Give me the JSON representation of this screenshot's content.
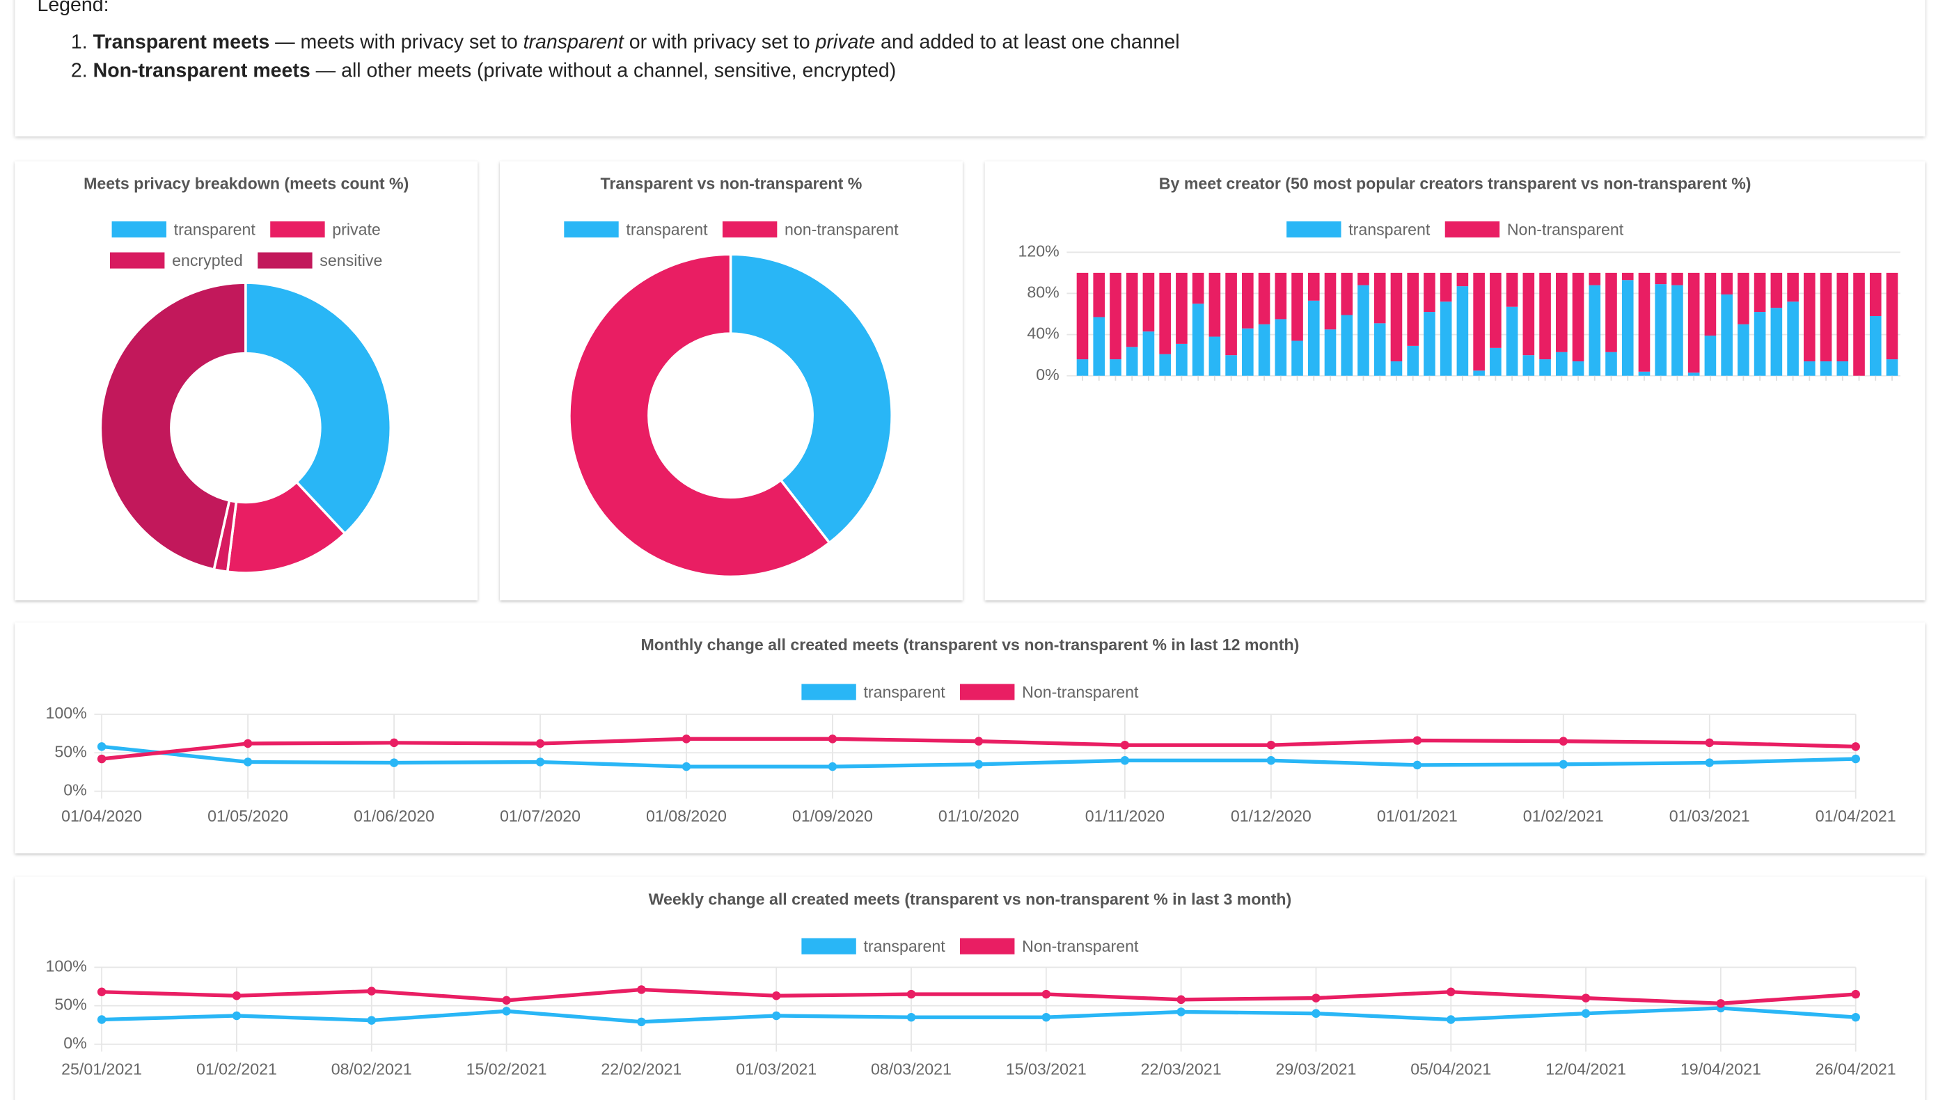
{
  "legend": {
    "title": "Legend:",
    "items": [
      {
        "term": "Transparent meets",
        "parts": [
          "— meets with privacy set to ",
          "transparent",
          " or with privacy set to ",
          "private",
          " and added to at least one channel"
        ]
      },
      {
        "term": "Non-transparent meets",
        "parts": [
          "— all other meets (private without a channel, sensitive, encrypted)"
        ]
      }
    ]
  },
  "chart_data": [
    {
      "type": "pie",
      "title": "Meets privacy breakdown (meets count %)",
      "categories": [
        "transparent",
        "private",
        "encrypted",
        "sensitive"
      ],
      "values": [
        38,
        14,
        1.5,
        46.5
      ],
      "colors": [
        "#29b6f6",
        "#e91e63",
        "#d81b60",
        "#c2185b"
      ],
      "donut": true
    },
    {
      "type": "pie",
      "title": "Transparent vs non-transparent %",
      "categories": [
        "transparent",
        "non-transparent"
      ],
      "values": [
        39.5,
        60.5
      ],
      "colors": [
        "#29b6f6",
        "#e91e63"
      ],
      "donut": true
    },
    {
      "type": "bar",
      "stacked": true,
      "title": "By meet creator (50 most popular creators transparent vs non-transparent %)",
      "categories": [
        null,
        null,
        null,
        null,
        null,
        null,
        null,
        null,
        null,
        null,
        null,
        null,
        null,
        null,
        null,
        null,
        null,
        null,
        null,
        null,
        null,
        null,
        null,
        null,
        null,
        null,
        null,
        null,
        null,
        null,
        null,
        null,
        null,
        null,
        null,
        null,
        null,
        null,
        null,
        null,
        null,
        null,
        null,
        null,
        null,
        null,
        null,
        null,
        null,
        null
      ],
      "series": [
        {
          "name": "transparent",
          "color": "#29b6f6",
          "values": [
            16,
            57,
            16,
            28,
            43,
            21,
            31,
            70,
            38,
            20,
            46,
            50,
            55,
            34,
            73,
            45,
            59,
            88,
            51,
            14,
            29,
            62,
            72,
            87,
            5,
            27,
            67,
            20,
            16,
            23,
            14,
            88,
            23,
            93,
            4,
            89,
            88,
            3,
            39,
            79,
            50,
            62,
            66,
            72,
            14,
            14,
            14,
            0,
            58,
            16
          ]
        },
        {
          "name": "Non-transparent",
          "color": "#e91e63",
          "values": [
            84,
            43,
            84,
            72,
            57,
            79,
            69,
            30,
            62,
            80,
            54,
            50,
            45,
            66,
            27,
            55,
            41,
            12,
            49,
            86,
            71,
            38,
            28,
            13,
            95,
            73,
            33,
            80,
            84,
            77,
            86,
            12,
            77,
            7,
            96,
            11,
            12,
            97,
            61,
            21,
            50,
            38,
            34,
            28,
            86,
            86,
            86,
            100,
            42,
            84
          ]
        }
      ],
      "ylim": [
        0,
        120
      ],
      "yticks": [
        {
          "value": 0,
          "label": "0%"
        },
        {
          "value": 40,
          "label": "40%"
        },
        {
          "value": 80,
          "label": "80%"
        },
        {
          "value": 120,
          "label": "120%"
        }
      ],
      "grid": true
    },
    {
      "type": "line",
      "title": "Monthly change all created meets (transparent vs non-transparent % in last 12 month)",
      "categories": [
        "01/04/2020",
        "01/05/2020",
        "01/06/2020",
        "01/07/2020",
        "01/08/2020",
        "01/09/2020",
        "01/10/2020",
        "01/11/2020",
        "01/12/2020",
        "01/01/2021",
        "01/02/2021",
        "01/03/2021",
        "01/04/2021"
      ],
      "series": [
        {
          "name": "transparent",
          "color": "#29b6f6",
          "values": [
            58,
            38,
            37,
            38,
            32,
            32,
            35,
            40,
            40,
            34,
            35,
            37,
            42
          ]
        },
        {
          "name": "Non-transparent",
          "color": "#e91e63",
          "values": [
            42,
            62,
            63,
            62,
            68,
            68,
            65,
            60,
            60,
            66,
            65,
            63,
            58
          ]
        }
      ],
      "ylim": [
        0,
        100
      ],
      "yticks": [
        {
          "value": 0,
          "label": "0%"
        },
        {
          "value": 50,
          "label": "50%"
        },
        {
          "value": 100,
          "label": "100%"
        }
      ],
      "grid": true
    },
    {
      "type": "line",
      "title": "Weekly change all created meets (transparent vs non-transparent % in last 3 month)",
      "categories": [
        "25/01/2021",
        "01/02/2021",
        "08/02/2021",
        "15/02/2021",
        "22/02/2021",
        "01/03/2021",
        "08/03/2021",
        "15/03/2021",
        "22/03/2021",
        "29/03/2021",
        "05/04/2021",
        "12/04/2021",
        "19/04/2021",
        "26/04/2021"
      ],
      "series": [
        {
          "name": "transparent",
          "color": "#29b6f6",
          "values": [
            32,
            37,
            31,
            43,
            29,
            37,
            35,
            35,
            42,
            40,
            32,
            40,
            47,
            35
          ]
        },
        {
          "name": "Non-transparent",
          "color": "#e91e63",
          "values": [
            68,
            63,
            69,
            57,
            71,
            63,
            65,
            65,
            58,
            60,
            68,
            60,
            53,
            65
          ]
        }
      ],
      "ylim": [
        0,
        100
      ],
      "yticks": [
        {
          "value": 0,
          "label": "0%"
        },
        {
          "value": 50,
          "label": "50%"
        },
        {
          "value": 100,
          "label": "100%"
        }
      ],
      "grid": true
    }
  ]
}
